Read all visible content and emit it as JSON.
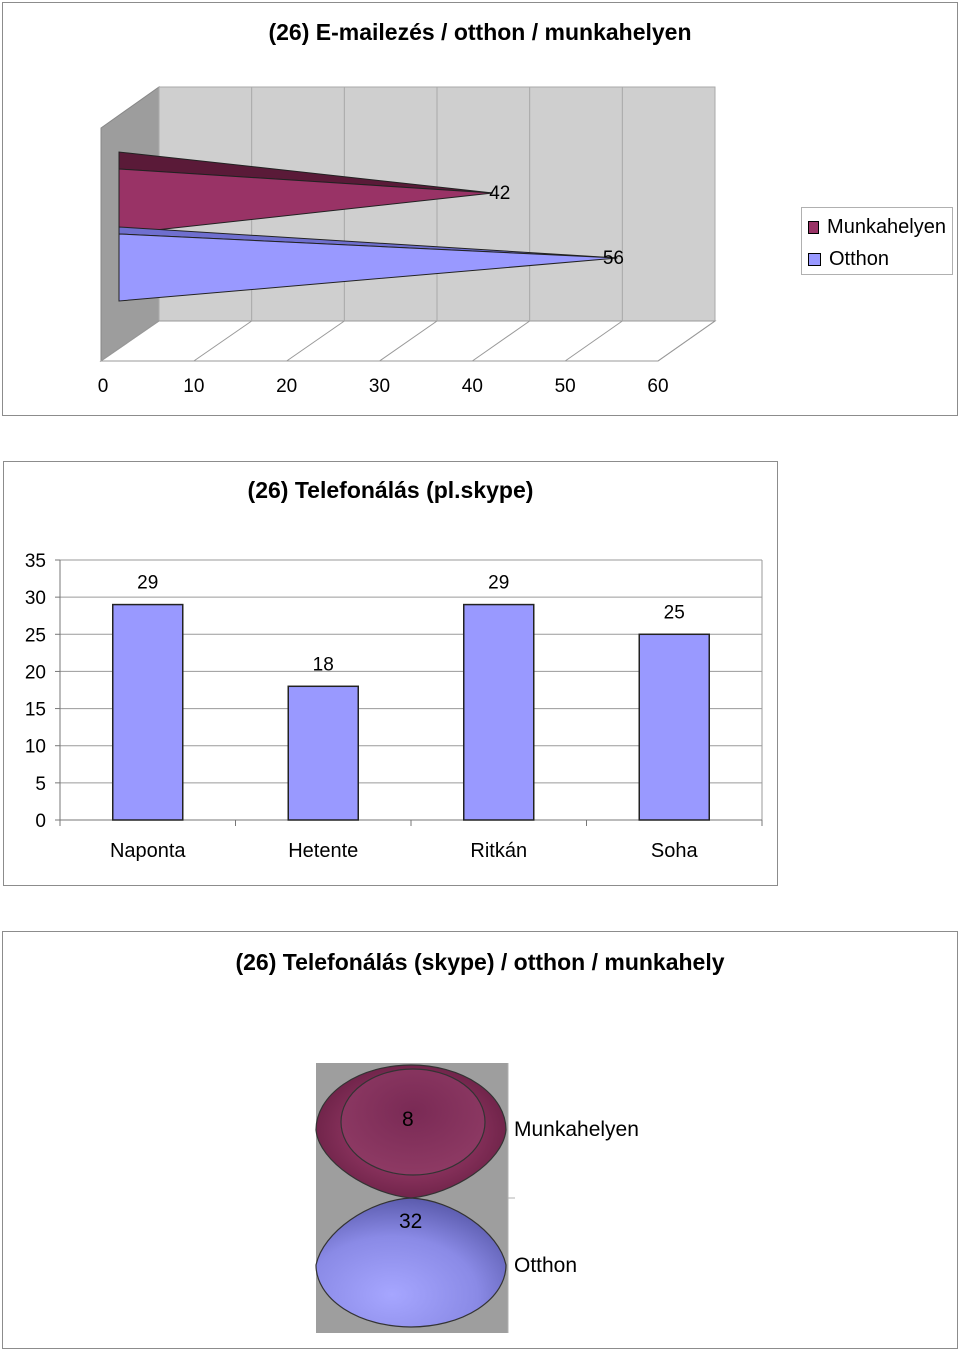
{
  "charts": [
    {
      "title": "(26) E-mailezés / otthon / munkahelyen",
      "legend": {
        "items": [
          {
            "label": "Munkahelyen",
            "color": "#993366"
          },
          {
            "label": "Otthon",
            "color": "#9999ff"
          }
        ]
      }
    },
    {
      "title": "(26) Telefonálás (pl.skype)"
    },
    {
      "title": "(26) Telefonálás (skype) / otthon / munkahely",
      "labels": {
        "munkahely": "Munkahelyen",
        "otthon": "Otthon"
      },
      "values": {
        "munkahely": "8",
        "otthon": "32"
      },
      "colors": {
        "munkahely": "#993366",
        "otthon": "#9999ff"
      }
    }
  ],
  "chart_data": [
    {
      "type": "bar",
      "orientation": "horizontal",
      "style": "3d-cone",
      "title": "(26) E-mailezés / otthon / munkahelyen",
      "series": [
        {
          "name": "Munkahelyen",
          "values": [
            42
          ],
          "color": "#993366"
        },
        {
          "name": "Otthon",
          "values": [
            56
          ],
          "color": "#9999ff"
        }
      ],
      "xlim": [
        0,
        60
      ],
      "xticks": [
        "0",
        "10",
        "20",
        "30",
        "40",
        "50",
        "60"
      ],
      "legend": "right"
    },
    {
      "type": "bar",
      "title": "(26) Telefonálás (pl.skype)",
      "categories": [
        "Naponta",
        "Hetente",
        "Ritkán",
        "Soha"
      ],
      "values": [
        29,
        18,
        29,
        25
      ],
      "color": "#9999ff",
      "ylim": [
        0,
        35
      ],
      "yticks": [
        "0",
        "5",
        "10",
        "15",
        "20",
        "25",
        "30",
        "35"
      ]
    },
    {
      "type": "bar",
      "style": "3d-cone",
      "title": "(26) Telefonálás (skype) / otthon / munkahely",
      "categories": [
        "Munkahelyen",
        "Otthon"
      ],
      "values": [
        8,
        32
      ],
      "colors": [
        "#993366",
        "#9999ff"
      ]
    }
  ]
}
